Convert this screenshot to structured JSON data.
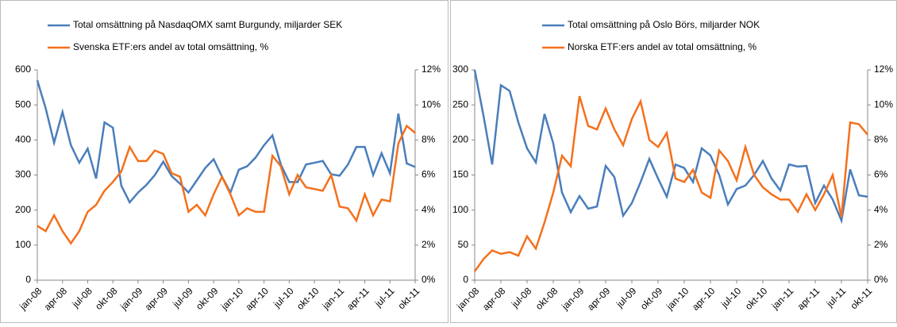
{
  "chart_data": [
    {
      "type": "line",
      "categories": [
        "jan-08",
        null,
        null,
        "apr-08",
        null,
        null,
        "jul-08",
        null,
        null,
        "okt-08",
        null,
        null,
        "jan-09",
        null,
        null,
        "apr-09",
        null,
        null,
        "jul-09",
        null,
        null,
        "okt-09",
        null,
        null,
        "jan-10",
        null,
        null,
        "apr-10",
        null,
        null,
        "jul-10",
        null,
        null,
        "okt-10",
        null,
        null,
        "jan-11",
        null,
        null,
        "apr-11",
        null,
        null,
        "jul-11",
        null,
        null,
        "okt-11"
      ],
      "ylim": [
        0,
        600
      ],
      "yticks": [
        0,
        100,
        200,
        300,
        400,
        500,
        600
      ],
      "y2lim": [
        0,
        12
      ],
      "y2ticks": [
        {
          "value": 0,
          "label": "0%"
        },
        {
          "value": 2,
          "label": "2%"
        },
        {
          "value": 4,
          "label": "4%"
        },
        {
          "value": 6,
          "label": "6%"
        },
        {
          "value": 8,
          "label": "8%"
        },
        {
          "value": 10,
          "label": "10%"
        },
        {
          "value": 12,
          "label": "12%"
        }
      ],
      "series": [
        {
          "name": "Total omsättning på NasdaqOMX samt Burgundy, miljarder SEK",
          "color": "#4a7ebb",
          "values": [
            570,
            490,
            392,
            480,
            385,
            335,
            375,
            290,
            450,
            435,
            270,
            222,
            250,
            272,
            300,
            338,
            297,
            275,
            250,
            285,
            320,
            345,
            295,
            250,
            315,
            325,
            350,
            385,
            413,
            330,
            280,
            280,
            330,
            335,
            340,
            302,
            298,
            330,
            380,
            380,
            300,
            362,
            305,
            475,
            333,
            323
          ]
        },
        {
          "name": "Svenska ETF:ers andel av total omsättning, %",
          "color": "#f4701c",
          "axis": "y2",
          "values": [
            3.1,
            2.8,
            3.7,
            2.8,
            2.1,
            2.8,
            3.9,
            4.3,
            5.1,
            5.6,
            6.2,
            7.6,
            6.8,
            6.8,
            7.4,
            7.2,
            6.1,
            5.9,
            3.9,
            4.3,
            3.7,
            4.9,
            5.9,
            4.9,
            3.7,
            4.1,
            3.9,
            3.9,
            7.1,
            6.5,
            4.9,
            6.0,
            5.3,
            5.2,
            5.1,
            6.0,
            4.2,
            4.1,
            3.4,
            4.9,
            3.7,
            4.6,
            4.5,
            7.8,
            8.8,
            8.4
          ]
        }
      ]
    },
    {
      "type": "line",
      "categories": [
        "jan-08",
        null,
        null,
        "apr-08",
        null,
        null,
        "jul-08",
        null,
        null,
        "okt-08",
        null,
        null,
        "jan-09",
        null,
        null,
        "apr-09",
        null,
        null,
        "jul-09",
        null,
        null,
        "okt-09",
        null,
        null,
        "jan-10",
        null,
        null,
        "apr-10",
        null,
        null,
        "jul-10",
        null,
        null,
        "okt-10",
        null,
        null,
        "jan-11",
        null,
        null,
        "apr-11",
        null,
        null,
        "jul-11",
        null,
        null,
        "okt-11"
      ],
      "ylim": [
        0,
        300
      ],
      "yticks": [
        0,
        50,
        100,
        150,
        200,
        250,
        300
      ],
      "y2lim": [
        0,
        12
      ],
      "y2ticks": [
        {
          "value": 0,
          "label": "0%"
        },
        {
          "value": 2,
          "label": "2%"
        },
        {
          "value": 4,
          "label": "4%"
        },
        {
          "value": 6,
          "label": "6%"
        },
        {
          "value": 8,
          "label": "8%"
        },
        {
          "value": 10,
          "label": "10%"
        },
        {
          "value": 12,
          "label": "12%"
        }
      ],
      "series": [
        {
          "name": "Total omsättning på Oslo Börs, miljarder NOK",
          "color": "#4a7ebb",
          "values": [
            300,
            235,
            165,
            278,
            270,
            225,
            188,
            168,
            237,
            195,
            125,
            97,
            120,
            102,
            105,
            163,
            147,
            92,
            110,
            140,
            173,
            145,
            119,
            165,
            160,
            140,
            188,
            178,
            150,
            108,
            130,
            135,
            150,
            170,
            145,
            128,
            165,
            162,
            163,
            110,
            135,
            115,
            85,
            158,
            121,
            119
          ]
        },
        {
          "name": "Norska ETF:ers andel av total omsättning, %",
          "color": "#f4701c",
          "axis": "y2",
          "values": [
            0.5,
            1.2,
            1.7,
            1.5,
            1.6,
            1.4,
            2.5,
            1.8,
            3.3,
            5.0,
            7.1,
            6.5,
            10.5,
            8.8,
            8.6,
            9.8,
            8.6,
            7.7,
            9.2,
            10.2,
            8.0,
            7.6,
            8.4,
            5.8,
            5.6,
            6.3,
            5.0,
            4.7,
            7.4,
            6.8,
            5.7,
            7.6,
            6.0,
            5.3,
            4.9,
            4.6,
            4.6,
            3.9,
            4.9,
            4.0,
            4.9,
            6.0,
            3.6,
            9.0,
            8.9,
            8.3
          ]
        }
      ]
    }
  ]
}
